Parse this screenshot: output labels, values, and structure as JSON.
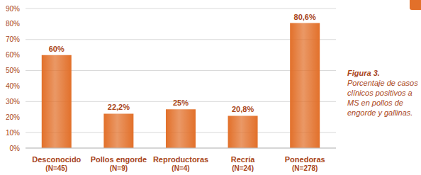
{
  "chart_data": {
    "type": "bar",
    "caption_label": "Figura 3.",
    "caption": "Porcentaje de casos clínicos positivos a MS en pollos de engorde y gallinas.",
    "categories": [
      "Desconocido\n(N=45)",
      "Pollos engorde\n(N=9)",
      "Reproductoras\n(N=4)",
      "Recría\n(N=24)",
      "Ponedoras\n(N=278)"
    ],
    "values": [
      60,
      22.2,
      25,
      20.8,
      80.6
    ],
    "value_labels": [
      "60%",
      "22,2%",
      "25%",
      "20,8%",
      "80,6%"
    ],
    "color": "#e2702a",
    "ylim": [
      0,
      90
    ],
    "yticks": [
      {
        "value": 0,
        "label": "0%"
      },
      {
        "value": 10,
        "label": "10%"
      },
      {
        "value": 20,
        "label": "20%"
      },
      {
        "value": 30,
        "label": "30%"
      },
      {
        "value": 40,
        "label": "40%"
      },
      {
        "value": 50,
        "label": "50%"
      },
      {
        "value": 60,
        "label": "60%"
      },
      {
        "value": 70,
        "label": "70%"
      },
      {
        "value": 80,
        "label": "80%"
      },
      {
        "value": 90,
        "label": "90%"
      }
    ],
    "grid": true,
    "data_labels": true
  }
}
